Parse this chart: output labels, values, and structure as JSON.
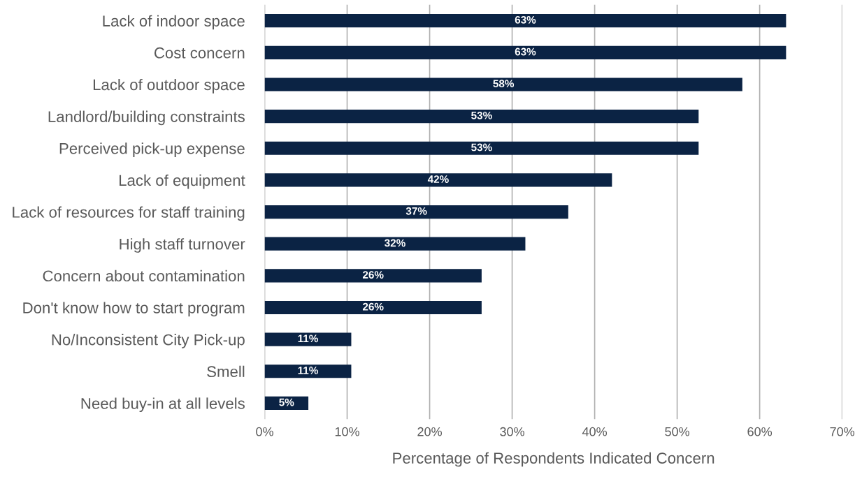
{
  "chart_data": {
    "type": "bar",
    "orientation": "horizontal",
    "xlabel": "Percentage of Respondents Indicated Concern",
    "categories": [
      "Lack of indoor space",
      "Cost concern",
      "Lack of outdoor space",
      "Landlord/building constraints",
      "Perceived pick-up expense",
      "Lack of equipment",
      "Lack of resources for staff training",
      "High staff turnover",
      "Concern about contamination",
      "Don't know how to start program",
      "No/Inconsistent City Pick-up",
      "Smell",
      "Need buy-in at all levels"
    ],
    "values": [
      63.2,
      63.2,
      57.9,
      52.6,
      52.6,
      42.1,
      36.8,
      31.6,
      26.3,
      26.3,
      10.5,
      10.5,
      5.3
    ],
    "value_labels": [
      "63%",
      "63%",
      "58%",
      "53%",
      "53%",
      "42%",
      "37%",
      "32%",
      "26%",
      "26%",
      "11%",
      "11%",
      "5%"
    ],
    "color": "#0b2344",
    "xlim": [
      0,
      70
    ],
    "xticks": [
      {
        "value": 0,
        "label": "0%"
      },
      {
        "value": 10,
        "label": "10%"
      },
      {
        "value": 20,
        "label": "20%"
      },
      {
        "value": 30,
        "label": "30%"
      },
      {
        "value": 40,
        "label": "40%"
      },
      {
        "value": 50,
        "label": "50%"
      },
      {
        "value": 60,
        "label": "60%"
      },
      {
        "value": 70,
        "label": "70%"
      }
    ],
    "grid": "x"
  }
}
